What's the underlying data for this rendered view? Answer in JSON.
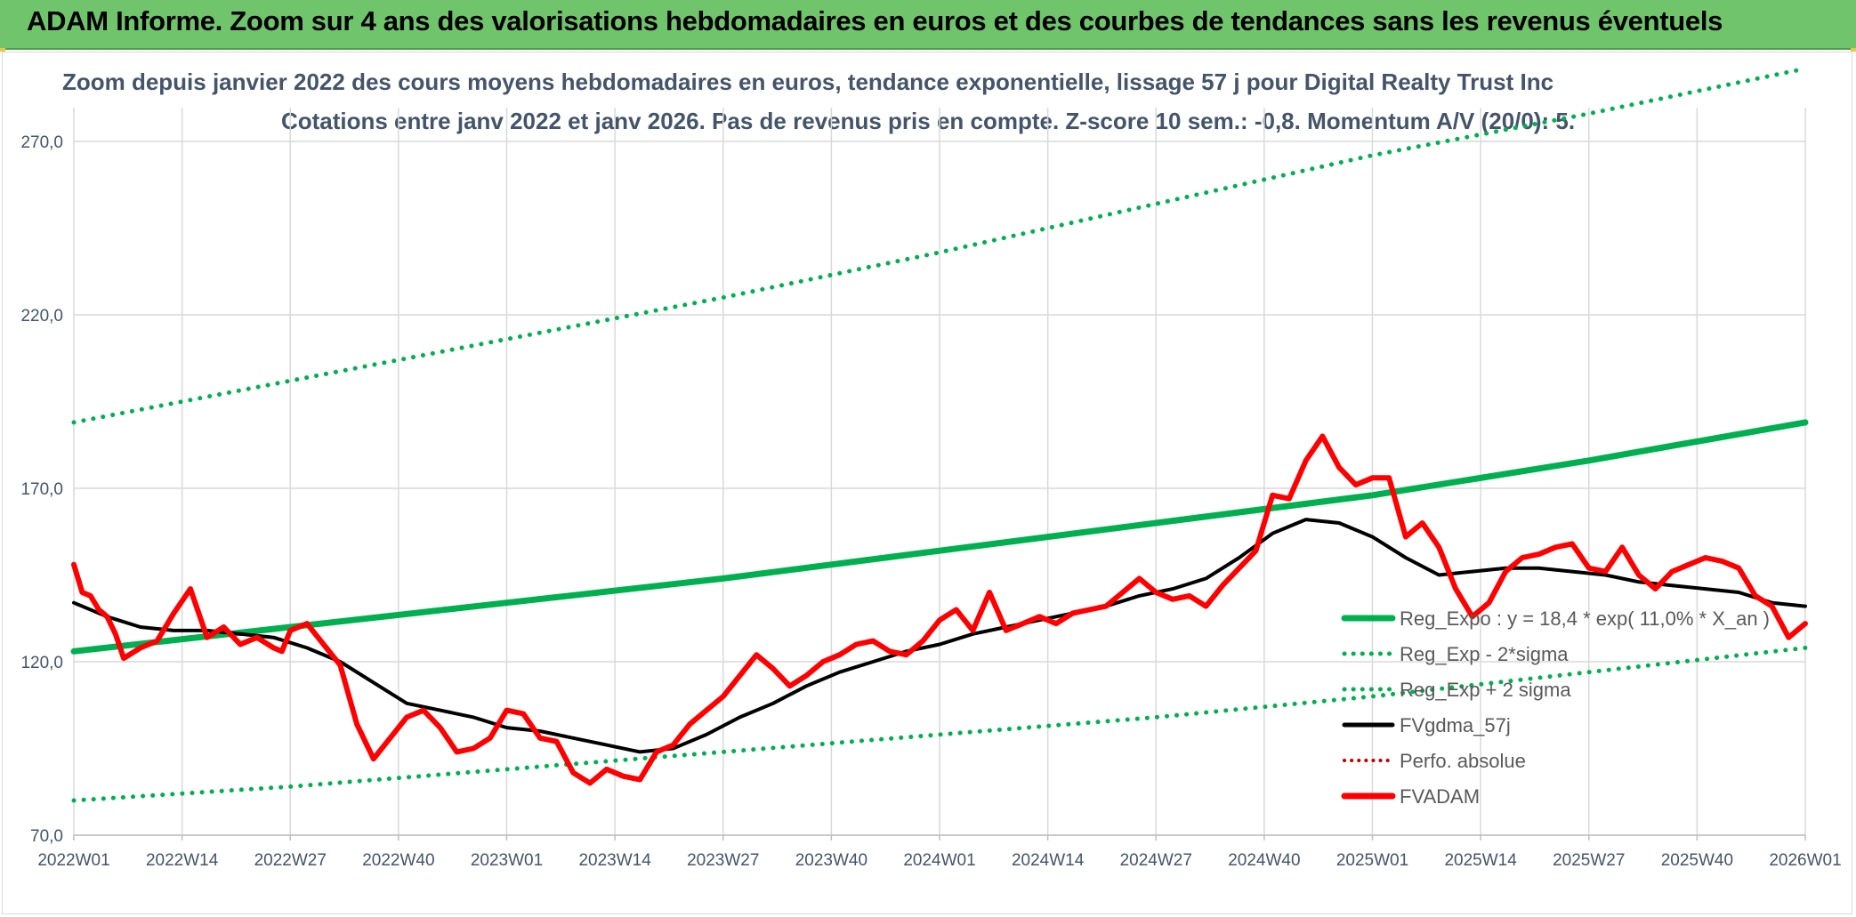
{
  "page": {
    "header_title": "ADAM Informe. Zoom sur 4 ans des valorisations hebdomadaires en euros et des courbes de tendances sans les revenus éventuels"
  },
  "colors": {
    "header_bg": "#6fc46c",
    "trend_green": "#00b050",
    "price_red": "#ff0000",
    "ma_black": "#000000",
    "perf_red": "#c00000",
    "grid": "#d9d9d9",
    "text": "#44546a"
  },
  "chart_data": {
    "type": "line",
    "title": "Zoom depuis janvier 2022 des cours moyens hebdomadaires en euros, tendance exponentielle, lissage 57 j pour Digital Realty Trust Inc",
    "subtitle": "Cotations entre janv 2022 et janv 2026. Pas de revenus pris en compte. Z-score 10 sem.: -0,8. Momentum A/V (20/0): 5.",
    "xlabel": "",
    "ylabel": "",
    "ylim": [
      70,
      290
    ],
    "yticks": [
      70,
      120,
      170,
      220,
      270
    ],
    "ytick_labels": [
      "70,0",
      "120,0",
      "170,0",
      "220,0",
      "270,0"
    ],
    "xtick_labels": [
      "2022W01",
      "2022W14",
      "2022W27",
      "2022W40",
      "2023W01",
      "2023W14",
      "2023W27",
      "2023W40",
      "2024W01",
      "2024W14",
      "2024W27",
      "2024W40",
      "2025W01",
      "2025W14",
      "2025W27",
      "2025W40",
      "2026W01"
    ],
    "x_weeks_total": 208,
    "legend": [
      {
        "label": "Reg_Expo : y = 18,4 * exp( 11,0% *  X_an )",
        "style": "solid-green"
      },
      {
        "label": "Reg_Exp - 2*sigma",
        "style": "dotted-green"
      },
      {
        "label": "Reg_Exp + 2 sigma",
        "style": "dotted-green"
      },
      {
        "label": "FVgdma_57j",
        "style": "solid-black"
      },
      {
        "label": "Perfo. absolue",
        "style": "dotted-red"
      },
      {
        "label": "FVADAM",
        "style": "solid-red"
      }
    ],
    "series": [
      {
        "name": "Reg_Expo",
        "x": [
          0,
          26,
          52,
          78,
          104,
          130,
          156,
          182,
          208
        ],
        "values": [
          123,
          130,
          137,
          144,
          152,
          160,
          168,
          178,
          189
        ]
      },
      {
        "name": "Reg_Exp - 2*sigma",
        "x": [
          0,
          26,
          52,
          78,
          104,
          130,
          156,
          182,
          208
        ],
        "values": [
          80,
          84,
          89,
          94,
          99,
          104,
          110,
          117,
          124
        ]
      },
      {
        "name": "Reg_Exp + 2 sigma",
        "x": [
          0,
          26,
          52,
          78,
          104,
          130,
          156,
          182,
          208
        ],
        "values": [
          189,
          201,
          213,
          225,
          238,
          252,
          266,
          278,
          291
        ]
      },
      {
        "name": "FVgdma_57j",
        "x": [
          0,
          4,
          8,
          12,
          16,
          20,
          24,
          28,
          32,
          36,
          40,
          44,
          48,
          52,
          56,
          60,
          64,
          68,
          72,
          76,
          80,
          84,
          88,
          92,
          96,
          100,
          104,
          108,
          112,
          116,
          120,
          124,
          128,
          132,
          136,
          140,
          144,
          148,
          152,
          156,
          160,
          164,
          168,
          172,
          176,
          180,
          184,
          188,
          192,
          196,
          200,
          204,
          208
        ],
        "values": [
          137,
          133,
          130,
          129,
          129,
          128,
          127,
          124,
          120,
          114,
          108,
          106,
          104,
          101,
          100,
          98,
          96,
          94,
          95,
          99,
          104,
          108,
          113,
          117,
          120,
          123,
          125,
          128,
          130,
          132,
          134,
          136,
          139,
          141,
          144,
          150,
          157,
          161,
          160,
          156,
          150,
          145,
          146,
          147,
          147,
          146,
          145,
          143,
          142,
          141,
          140,
          137,
          136
        ]
      },
      {
        "name": "FVADAM",
        "x": [
          0,
          1,
          2,
          3,
          4,
          5,
          6,
          8,
          10,
          12,
          14,
          16,
          18,
          20,
          22,
          24,
          25,
          26,
          28,
          30,
          32,
          34,
          36,
          38,
          40,
          42,
          44,
          46,
          48,
          50,
          52,
          54,
          56,
          58,
          60,
          62,
          64,
          66,
          68,
          70,
          72,
          74,
          76,
          78,
          80,
          82,
          84,
          86,
          88,
          90,
          92,
          94,
          96,
          98,
          100,
          102,
          104,
          106,
          108,
          110,
          112,
          114,
          116,
          118,
          120,
          122,
          124,
          126,
          128,
          130,
          132,
          134,
          136,
          138,
          140,
          142,
          144,
          146,
          148,
          150,
          152,
          154,
          156,
          158,
          160,
          162,
          164,
          166,
          168,
          170,
          172,
          174,
          176,
          178,
          180,
          182,
          184,
          186,
          188,
          190,
          192,
          194,
          196,
          198,
          200,
          202,
          204,
          206,
          208
        ],
        "values": [
          148,
          140,
          139,
          135,
          133,
          128,
          121,
          124,
          126,
          134,
          141,
          127,
          130,
          125,
          127,
          124,
          123,
          129,
          131,
          125,
          119,
          102,
          92,
          98,
          104,
          106,
          101,
          94,
          95,
          98,
          106,
          105,
          98,
          97,
          88,
          85,
          89,
          87,
          86,
          94,
          96,
          102,
          106,
          110,
          116,
          122,
          118,
          113,
          116,
          120,
          122,
          125,
          126,
          123,
          122,
          126,
          132,
          135,
          129,
          140,
          129,
          131,
          133,
          131,
          134,
          135,
          136,
          140,
          144,
          140,
          138,
          139,
          136,
          142,
          147,
          152,
          168,
          167,
          178,
          185,
          176,
          171,
          173,
          173,
          156,
          160,
          153,
          141,
          133,
          137,
          146,
          150,
          151,
          153,
          154,
          147,
          146,
          153,
          145,
          141,
          146,
          148,
          150,
          149,
          147,
          139,
          136,
          127,
          131
        ]
      }
    ]
  }
}
